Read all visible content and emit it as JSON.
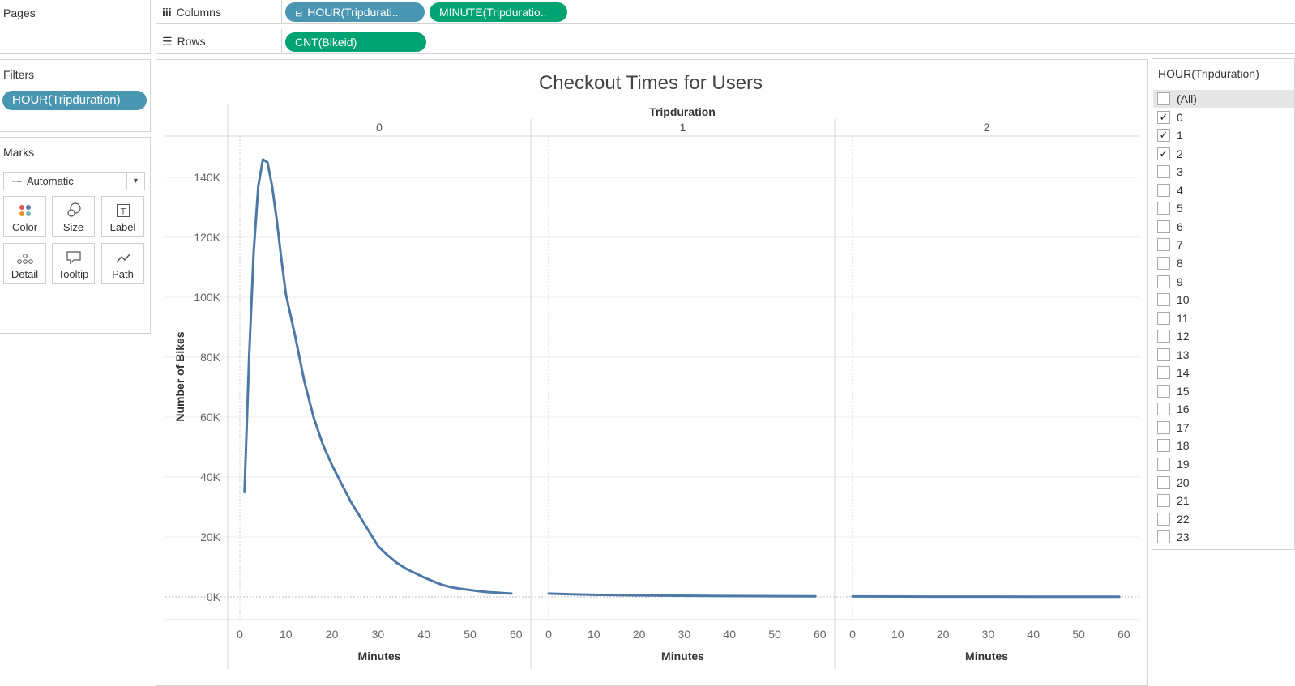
{
  "shelves": {
    "pages_label": "Pages",
    "columns_label": "Columns",
    "rows_label": "Rows",
    "columns_pills": [
      "HOUR(Tripdurati..",
      "MINUTE(Tripduratio.."
    ],
    "rows_pills": [
      "CNT(Bikeid)"
    ]
  },
  "filters": {
    "title": "Filters",
    "pill": "HOUR(Tripduration)"
  },
  "marks": {
    "title": "Marks",
    "type": "Automatic",
    "buttons": [
      "Color",
      "Size",
      "Label",
      "Detail",
      "Tooltip",
      "Path"
    ]
  },
  "filter_card": {
    "title": "HOUR(Tripduration)",
    "items": [
      {
        "label": "(All)",
        "checked": false
      },
      {
        "label": "0",
        "checked": true
      },
      {
        "label": "1",
        "checked": true
      },
      {
        "label": "2",
        "checked": true
      },
      {
        "label": "3",
        "checked": false
      },
      {
        "label": "4",
        "checked": false
      },
      {
        "label": "5",
        "checked": false
      },
      {
        "label": "6",
        "checked": false
      },
      {
        "label": "7",
        "checked": false
      },
      {
        "label": "8",
        "checked": false
      },
      {
        "label": "9",
        "checked": false
      },
      {
        "label": "10",
        "checked": false
      },
      {
        "label": "11",
        "checked": false
      },
      {
        "label": "12",
        "checked": false
      },
      {
        "label": "13",
        "checked": false
      },
      {
        "label": "14",
        "checked": false
      },
      {
        "label": "15",
        "checked": false
      },
      {
        "label": "16",
        "checked": false
      },
      {
        "label": "17",
        "checked": false
      },
      {
        "label": "18",
        "checked": false
      },
      {
        "label": "19",
        "checked": false
      },
      {
        "label": "20",
        "checked": false
      },
      {
        "label": "21",
        "checked": false
      },
      {
        "label": "22",
        "checked": false
      },
      {
        "label": "23",
        "checked": false
      }
    ]
  },
  "chart_data": {
    "type": "line",
    "title": "Checkout Times for Users",
    "column_header": "Tripduration",
    "panels": [
      "0",
      "1",
      "2"
    ],
    "ylabel": "Number of Bikes",
    "xlabel": "Minutes",
    "ylim": [
      0,
      150000
    ],
    "y_ticks": [
      "0K",
      "20K",
      "40K",
      "60K",
      "80K",
      "100K",
      "120K",
      "140K"
    ],
    "y_tick_values": [
      0,
      20000,
      40000,
      60000,
      80000,
      100000,
      120000,
      140000
    ],
    "x_ticks": [
      0,
      10,
      20,
      30,
      40,
      50,
      60
    ],
    "series": [
      {
        "panel": "0",
        "color": "#4e79a7",
        "x": [
          1,
          2,
          3,
          4,
          5,
          6,
          7,
          8,
          9,
          10,
          12,
          14,
          16,
          18,
          20,
          22,
          24,
          26,
          28,
          30,
          32,
          34,
          36,
          38,
          40,
          42,
          44,
          46,
          48,
          50,
          52,
          54,
          56,
          58,
          59
        ],
        "y": [
          35000,
          80000,
          115000,
          137000,
          146000,
          145000,
          137000,
          126000,
          113000,
          101000,
          87000,
          72000,
          60000,
          51000,
          44000,
          38000,
          32000,
          27000,
          22000,
          17000,
          14000,
          11500,
          9500,
          8000,
          6500,
          5200,
          4000,
          3200,
          2700,
          2300,
          1900,
          1600,
          1400,
          1200,
          1100
        ]
      },
      {
        "panel": "1",
        "color": "#4e79a7",
        "x": [
          0,
          5,
          10,
          20,
          30,
          40,
          50,
          59
        ],
        "y": [
          1100,
          900,
          700,
          500,
          400,
          300,
          250,
          200
        ]
      },
      {
        "panel": "2",
        "color": "#4e79a7",
        "x": [
          0,
          10,
          20,
          30,
          40,
          50,
          59
        ],
        "y": [
          150,
          130,
          110,
          100,
          90,
          80,
          70
        ]
      }
    ]
  }
}
